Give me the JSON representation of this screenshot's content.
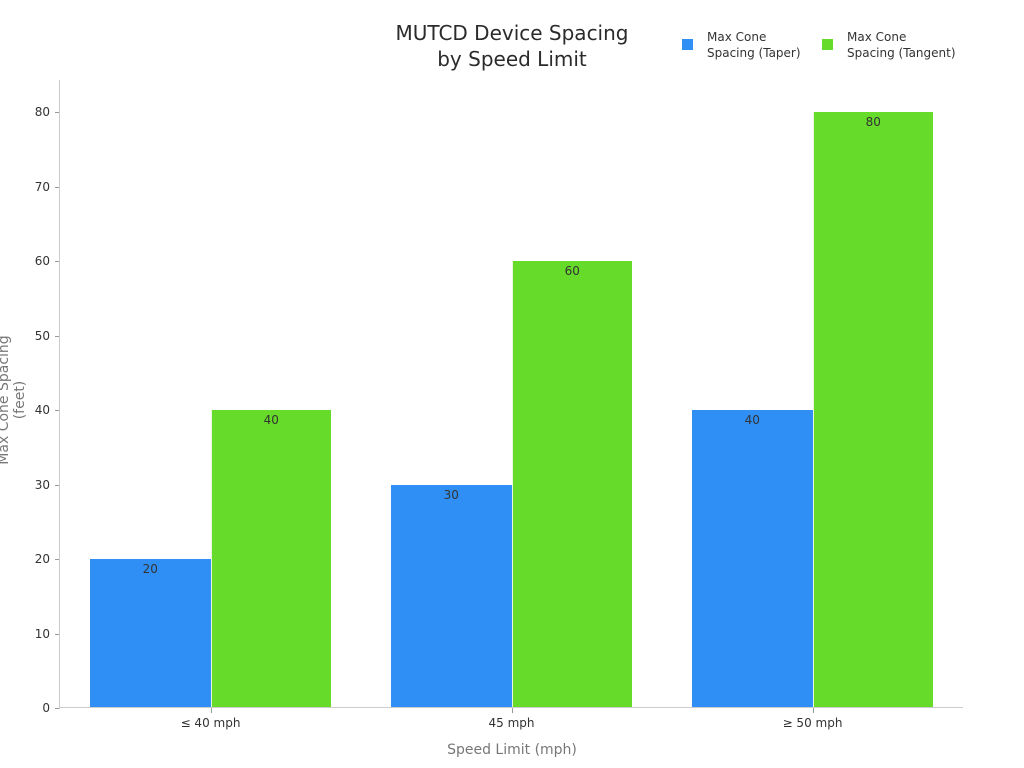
{
  "chart_data": {
    "type": "bar",
    "title": "MUTCD Device Spacing\nby Speed Limit",
    "title_lines": [
      "MUTCD Device Spacing",
      "by Speed Limit"
    ],
    "categories": [
      "≤ 40 mph",
      "45 mph",
      "≥ 50 mph"
    ],
    "series": [
      {
        "name": "Max Cone\nSpacing (Taper)",
        "label": "Max Cone Spacing (Taper)",
        "color": "#2f8ff5",
        "values": [
          20,
          30,
          40
        ]
      },
      {
        "name": "Max Cone\nSpacing (Tangent)",
        "label": "Max Cone Spacing (Tangent)",
        "color": "#66db29",
        "values": [
          40,
          60,
          80
        ]
      }
    ],
    "xlabel": "Speed Limit (mph)",
    "ylabel": "Max Cone Spacing (feet)",
    "ylim": [
      0,
      84
    ],
    "yticks": [
      0,
      10,
      20,
      30,
      40,
      50,
      60,
      70,
      80
    ],
    "grid": false,
    "legend_position": "top-right",
    "data_labels": true
  }
}
